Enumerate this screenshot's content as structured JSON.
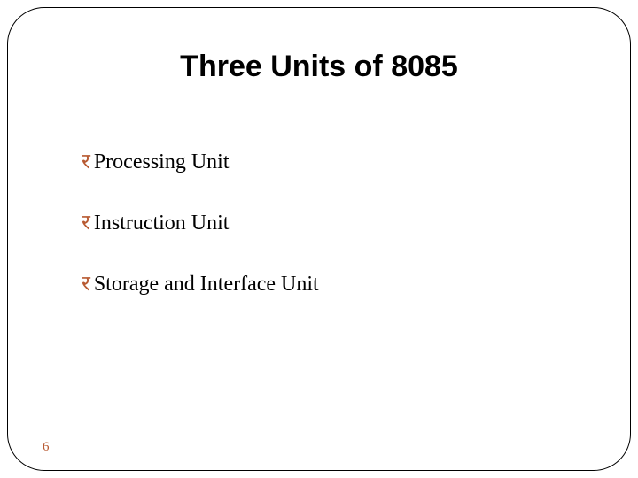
{
  "slide": {
    "title": "Three Units of 8085",
    "title_fontsize": 34,
    "title_color": "#000000",
    "bullets": [
      {
        "text": "Processing Unit"
      },
      {
        "text": "Instruction Unit"
      },
      {
        "text": "Storage and Interface Unit"
      }
    ],
    "bullet_glyph": "र",
    "bullet_glyph_color": "#b85a32",
    "bullet_fontsize": 24,
    "bullet_text_color": "#000000",
    "page_number": "6",
    "page_number_color": "#b85a32",
    "page_number_fontsize": 15,
    "frame_border_color": "#000000",
    "frame_border_radius": 42,
    "background_color": "#ffffff"
  }
}
